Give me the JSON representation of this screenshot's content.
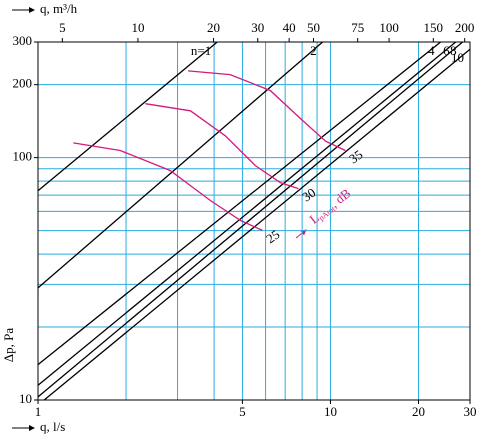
{
  "chart_data": {
    "type": "line",
    "log_x": true,
    "log_y": true,
    "xlim": [
      1,
      30
    ],
    "ylim": [
      10,
      300
    ],
    "xticks": [
      1,
      5,
      10,
      20,
      30
    ],
    "yticks": [
      10,
      100,
      200,
      300
    ],
    "xgrid": [
      2,
      3,
      4,
      5,
      6,
      7,
      8,
      9,
      10,
      20
    ],
    "ygrid": [
      20,
      30,
      40,
      50,
      60,
      70,
      80,
      90,
      100,
      200
    ],
    "grid_color": "#29abe2",
    "x_label": "q, l/s",
    "y_label": "Δp, Pa",
    "x2_label": "q, m³/h",
    "x2lim": [
      4,
      210
    ],
    "x2ticks": [
      5,
      10,
      20,
      30,
      40,
      50,
      75,
      100,
      150,
      200
    ],
    "series": [
      {
        "name": "n=1",
        "color": "#000000",
        "x": [
          1,
          4.1
        ],
        "values": [
          73,
          300
        ]
      },
      {
        "name": "2",
        "color": "#000000",
        "x": [
          1,
          9.4
        ],
        "values": [
          29,
          300
        ]
      },
      {
        "name": "4",
        "color": "#000000",
        "x": [
          1,
          23.8
        ],
        "values": [
          14,
          300
        ]
      },
      {
        "name": "6",
        "color": "#000000",
        "x": [
          1,
          26.8
        ],
        "values": [
          11.5,
          300
        ]
      },
      {
        "name": "8",
        "color": "#000000",
        "x": [
          1,
          28.3
        ],
        "values": [
          10.3,
          300
        ]
      },
      {
        "name": "10",
        "color": "#000000",
        "x": [
          1.05,
          30
        ],
        "values": [
          10,
          280
        ]
      },
      {
        "name": "35",
        "color": "#d6197d",
        "x": [
          3.26,
          4.54,
          6.23,
          7.89,
          9.61,
          11.25
        ],
        "values": [
          228,
          220,
          189,
          145,
          117,
          107
        ]
      },
      {
        "name": "30",
        "color": "#d6197d",
        "x": [
          2.33,
          3.32,
          4.37,
          5.54,
          6.74,
          7.77
        ],
        "values": [
          167,
          156,
          123,
          92.7,
          78.9,
          74.5
        ]
      },
      {
        "name": "25",
        "color": "#d6197d",
        "x": [
          1.32,
          1.91,
          2.83,
          3.88,
          4.92,
          5.85
        ],
        "values": [
          115,
          107,
          88.5,
          66.6,
          55.1,
          50.1
        ]
      }
    ],
    "annotation": {
      "symbol": "L",
      "subscript": "pAtot",
      "unit": ", dB"
    }
  }
}
